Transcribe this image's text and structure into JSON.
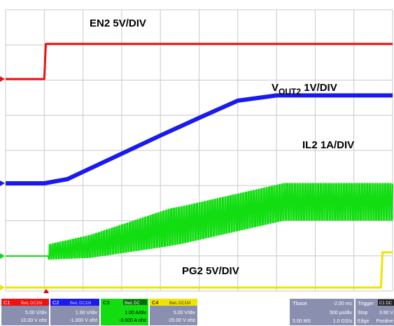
{
  "chart_data": {
    "type": "line",
    "title": "",
    "xlabel": "",
    "ylabel": "",
    "x_unit": "ms",
    "xlim": [
      -2.0,
      3.0
    ],
    "ylim_divisions": [
      -4,
      4
    ],
    "grid": true,
    "annotations": [
      {
        "id": "en2",
        "text": "EN2 5V/DIV"
      },
      {
        "id": "vout",
        "text_main": "V",
        "text_sub": "OUT2",
        "text_tail": " 1V/DIV"
      },
      {
        "id": "il2",
        "text": "IL2 1A/DIV"
      },
      {
        "id": "pg2",
        "text": "PG2 5V/DIV"
      }
    ],
    "series": [
      {
        "key": "en2",
        "color": "#ee1111",
        "x": [
          -2.0,
          -1.5,
          -1.48,
          3.0
        ],
        "y": [
          0.0,
          0.0,
          5.0,
          5.0
        ]
      },
      {
        "key": "vout",
        "color": "#1a1aee",
        "x": [
          -2.0,
          -1.5,
          -1.2,
          0.0,
          0.5,
          1.0,
          1.5,
          3.0
        ],
        "y": [
          0.0,
          0.0,
          0.12,
          1.36,
          1.86,
          2.35,
          2.5,
          2.5
        ]
      },
      {
        "key": "il2",
        "color": "#11dd11",
        "x": [
          -2.0,
          -1.45,
          -0.9,
          0.3,
          1.0,
          1.6,
          3.0
        ],
        "y": [
          0.0,
          0.0,
          0.1,
          0.6,
          0.95,
          1.25,
          1.25
        ]
      },
      {
        "key": "pg2",
        "color": "#f2e300",
        "x": [
          -2.0,
          2.85,
          2.87,
          3.0
        ],
        "y": [
          0.0,
          0.0,
          5.0,
          5.0
        ]
      }
    ]
  },
  "status_bar": {
    "ch1": {
      "name": "C1",
      "badge": "BwL DC1M",
      "vdiv": "5.00 V/div",
      "ofst": "10.00 V ofst"
    },
    "ch2": {
      "name": "C2",
      "badge": "BwL DC1M",
      "vdiv": "1.00 V/div",
      "ofst": "-1.000 V ofst"
    },
    "ch3": {
      "name": "C3",
      "badge": "BwL DC",
      "vdiv": "1.00 A/div",
      "ofst": "-3.000 A ofst"
    },
    "ch4": {
      "name": "C4",
      "badge": "BwL DC1M",
      "vdiv": "5.00 V/div",
      "ofst": "-20.00 V ofst"
    },
    "timebase": {
      "label": "Tbase",
      "delay": "-2.00 ms",
      "tdiv": "500 µs/div",
      "samples": "5.00 MS",
      "rate": "1.0 GS/s"
    },
    "trigger": {
      "label": "Trigger",
      "src": "C1 DC",
      "mode": "Stop",
      "level": "3.90 V",
      "type": "Edge",
      "slope": "Positive"
    }
  },
  "colors": {
    "ch1": "#ee1111",
    "ch2": "#1a1aee",
    "ch3": "#11dd11",
    "ch4": "#f2e300",
    "grid": "#c8c8c8",
    "panel": "#8a8fb0",
    "trigger_marker": "#dd0000"
  }
}
